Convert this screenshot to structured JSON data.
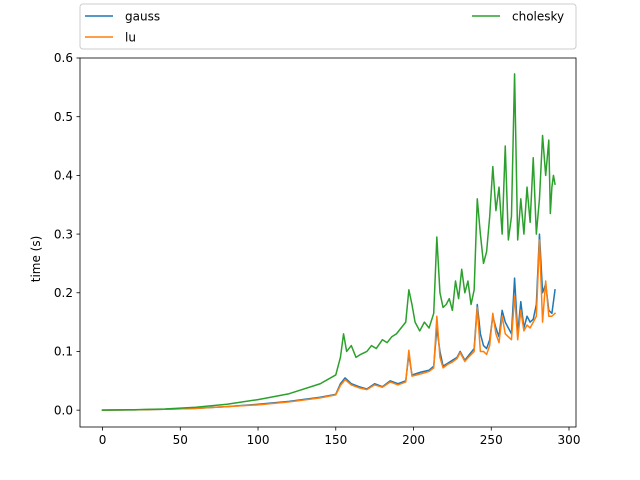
{
  "chart_data": {
    "type": "line",
    "title": "",
    "xlabel": "",
    "ylabel": "time (s)",
    "xlim": [
      -14.5,
      304.5
    ],
    "ylim": [
      -0.0287,
      0.6
    ],
    "xticks": [
      0,
      50,
      100,
      150,
      200,
      250,
      300
    ],
    "xtick_labels": [
      "0",
      "50",
      "100",
      "150",
      "200",
      "250",
      "300"
    ],
    "yticks": [
      0.0,
      0.1,
      0.2,
      0.3,
      0.4,
      0.5,
      0.6
    ],
    "ytick_labels": [
      "0.0",
      "0.1",
      "0.2",
      "0.3",
      "0.4",
      "0.5",
      "0.6"
    ],
    "grid": false,
    "legend_placement": "above plot, two columns",
    "series": [
      {
        "name": "gauss",
        "color": "#1f77b4",
        "points": [
          [
            0,
            0.0
          ],
          [
            20,
            0.0005
          ],
          [
            40,
            0.0015
          ],
          [
            60,
            0.003
          ],
          [
            80,
            0.006
          ],
          [
            100,
            0.01
          ],
          [
            120,
            0.015
          ],
          [
            140,
            0.022
          ],
          [
            150,
            0.027
          ],
          [
            153,
            0.045
          ],
          [
            156,
            0.055
          ],
          [
            160,
            0.045
          ],
          [
            165,
            0.04
          ],
          [
            170,
            0.036
          ],
          [
            175,
            0.045
          ],
          [
            180,
            0.04
          ],
          [
            185,
            0.05
          ],
          [
            190,
            0.045
          ],
          [
            195,
            0.05
          ],
          [
            197,
            0.095
          ],
          [
            199,
            0.06
          ],
          [
            205,
            0.065
          ],
          [
            210,
            0.068
          ],
          [
            213,
            0.075
          ],
          [
            215,
            0.14
          ],
          [
            217,
            0.1
          ],
          [
            219,
            0.075
          ],
          [
            222,
            0.08
          ],
          [
            225,
            0.085
          ],
          [
            228,
            0.09
          ],
          [
            230,
            0.1
          ],
          [
            233,
            0.085
          ],
          [
            236,
            0.095
          ],
          [
            239,
            0.105
          ],
          [
            241,
            0.18
          ],
          [
            243,
            0.13
          ],
          [
            245,
            0.11
          ],
          [
            247,
            0.105
          ],
          [
            249,
            0.12
          ],
          [
            251,
            0.16
          ],
          [
            253,
            0.14
          ],
          [
            255,
            0.125
          ],
          [
            257,
            0.17
          ],
          [
            259,
            0.15
          ],
          [
            261,
            0.14
          ],
          [
            263,
            0.13
          ],
          [
            265,
            0.225
          ],
          [
            267,
            0.13
          ],
          [
            269,
            0.185
          ],
          [
            271,
            0.14
          ],
          [
            273,
            0.16
          ],
          [
            275,
            0.15
          ],
          [
            277,
            0.155
          ],
          [
            279,
            0.18
          ],
          [
            281,
            0.3
          ],
          [
            283,
            0.2
          ],
          [
            285,
            0.215
          ],
          [
            287,
            0.17
          ],
          [
            289,
            0.165
          ],
          [
            291,
            0.205
          ]
        ]
      },
      {
        "name": "lu",
        "color": "#ff7f0e",
        "points": [
          [
            0,
            0.0
          ],
          [
            20,
            0.0005
          ],
          [
            40,
            0.0015
          ],
          [
            60,
            0.003
          ],
          [
            80,
            0.006
          ],
          [
            100,
            0.009
          ],
          [
            120,
            0.014
          ],
          [
            140,
            0.021
          ],
          [
            150,
            0.026
          ],
          [
            153,
            0.042
          ],
          [
            156,
            0.052
          ],
          [
            160,
            0.043
          ],
          [
            165,
            0.038
          ],
          [
            170,
            0.035
          ],
          [
            175,
            0.043
          ],
          [
            180,
            0.039
          ],
          [
            185,
            0.048
          ],
          [
            190,
            0.043
          ],
          [
            195,
            0.048
          ],
          [
            197,
            0.102
          ],
          [
            199,
            0.058
          ],
          [
            205,
            0.062
          ],
          [
            210,
            0.066
          ],
          [
            213,
            0.072
          ],
          [
            215,
            0.16
          ],
          [
            217,
            0.09
          ],
          [
            219,
            0.072
          ],
          [
            222,
            0.078
          ],
          [
            225,
            0.082
          ],
          [
            228,
            0.088
          ],
          [
            230,
            0.098
          ],
          [
            233,
            0.083
          ],
          [
            236,
            0.092
          ],
          [
            239,
            0.1
          ],
          [
            241,
            0.175
          ],
          [
            243,
            0.1
          ],
          [
            245,
            0.1
          ],
          [
            247,
            0.095
          ],
          [
            249,
            0.11
          ],
          [
            251,
            0.165
          ],
          [
            253,
            0.13
          ],
          [
            255,
            0.115
          ],
          [
            257,
            0.16
          ],
          [
            259,
            0.13
          ],
          [
            261,
            0.125
          ],
          [
            263,
            0.12
          ],
          [
            265,
            0.195
          ],
          [
            267,
            0.12
          ],
          [
            269,
            0.17
          ],
          [
            271,
            0.135
          ],
          [
            273,
            0.145
          ],
          [
            275,
            0.14
          ],
          [
            277,
            0.15
          ],
          [
            279,
            0.16
          ],
          [
            281,
            0.29
          ],
          [
            283,
            0.15
          ],
          [
            285,
            0.22
          ],
          [
            287,
            0.16
          ],
          [
            289,
            0.16
          ],
          [
            291,
            0.165
          ]
        ]
      },
      {
        "name": "cholesky",
        "color": "#2ca02c",
        "points": [
          [
            0,
            0.0
          ],
          [
            20,
            0.0008
          ],
          [
            40,
            0.002
          ],
          [
            60,
            0.005
          ],
          [
            80,
            0.01
          ],
          [
            100,
            0.018
          ],
          [
            120,
            0.028
          ],
          [
            140,
            0.045
          ],
          [
            150,
            0.06
          ],
          [
            153,
            0.09
          ],
          [
            155,
            0.13
          ],
          [
            157,
            0.1
          ],
          [
            160,
            0.11
          ],
          [
            163,
            0.09
          ],
          [
            166,
            0.095
          ],
          [
            170,
            0.1
          ],
          [
            173,
            0.11
          ],
          [
            176,
            0.105
          ],
          [
            180,
            0.12
          ],
          [
            183,
            0.115
          ],
          [
            186,
            0.125
          ],
          [
            189,
            0.13
          ],
          [
            192,
            0.14
          ],
          [
            195,
            0.15
          ],
          [
            197,
            0.205
          ],
          [
            199,
            0.18
          ],
          [
            201,
            0.15
          ],
          [
            204,
            0.135
          ],
          [
            207,
            0.15
          ],
          [
            210,
            0.14
          ],
          [
            213,
            0.165
          ],
          [
            215,
            0.295
          ],
          [
            217,
            0.2
          ],
          [
            219,
            0.175
          ],
          [
            221,
            0.18
          ],
          [
            223,
            0.19
          ],
          [
            225,
            0.17
          ],
          [
            227,
            0.22
          ],
          [
            229,
            0.19
          ],
          [
            231,
            0.24
          ],
          [
            233,
            0.2
          ],
          [
            235,
            0.22
          ],
          [
            237,
            0.18
          ],
          [
            239,
            0.205
          ],
          [
            241,
            0.36
          ],
          [
            243,
            0.3
          ],
          [
            245,
            0.25
          ],
          [
            247,
            0.27
          ],
          [
            249,
            0.33
          ],
          [
            251,
            0.415
          ],
          [
            253,
            0.34
          ],
          [
            255,
            0.38
          ],
          [
            257,
            0.3
          ],
          [
            259,
            0.45
          ],
          [
            261,
            0.29
          ],
          [
            263,
            0.33
          ],
          [
            265,
            0.573
          ],
          [
            267,
            0.29
          ],
          [
            269,
            0.36
          ],
          [
            271,
            0.3
          ],
          [
            273,
            0.38
          ],
          [
            275,
            0.32
          ],
          [
            277,
            0.43
          ],
          [
            279,
            0.3
          ],
          [
            281,
            0.36
          ],
          [
            283,
            0.468
          ],
          [
            285,
            0.4
          ],
          [
            287,
            0.46
          ],
          [
            288,
            0.335
          ],
          [
            289,
            0.38
          ],
          [
            290,
            0.4
          ],
          [
            291,
            0.385
          ]
        ]
      }
    ]
  }
}
